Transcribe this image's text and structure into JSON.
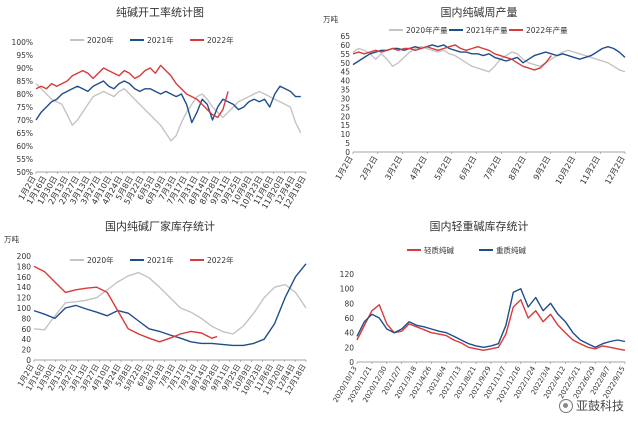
{
  "colors": {
    "y2020": "#c4c4c4",
    "y2021": "#1f4e8c",
    "y2022": "#d93a3a",
    "axis": "#888888",
    "text": "#333333"
  },
  "watermark": {
    "text": "亚鼓科技",
    "icon": "wechat-icon"
  },
  "chart_data": [
    {
      "id": "c1",
      "type": "line",
      "title": "纯碱开工率统计图",
      "unit": "",
      "ylim": [
        50,
        100
      ],
      "yticks": [
        50,
        55,
        60,
        65,
        70,
        75,
        80,
        85,
        90,
        95,
        100
      ],
      "y_percent": true,
      "xticks": [
        "1月2日",
        "1月16日",
        "1月30日",
        "2月13日",
        "2月27日",
        "3月13日",
        "3月27日",
        "4月10日",
        "4月24日",
        "5月8日",
        "5月22日",
        "6月5日",
        "6月19日",
        "7月3日",
        "7月17日",
        "7月31日",
        "8月14日",
        "8月28日",
        "9月11日",
        "9月25日",
        "10月9日",
        "10月23日",
        "11月6日",
        "11月20日",
        "12月4日",
        "12月18日"
      ],
      "xdomain": [
        0,
        52
      ],
      "legend": [
        "2020年",
        "2021年",
        "2022年"
      ],
      "series": [
        {
          "name": "2020年",
          "color": "y2020",
          "x": [
            0,
            1,
            2,
            3,
            4,
            5,
            6,
            7,
            8,
            9,
            10,
            11,
            12,
            13,
            14,
            15,
            16,
            17,
            18,
            19,
            20,
            21,
            22,
            23,
            24,
            25,
            26,
            27,
            28,
            29,
            30,
            31,
            32,
            33,
            34,
            35,
            36,
            37,
            38,
            39,
            40,
            41,
            42,
            43,
            44,
            45,
            46,
            47,
            48,
            49,
            50,
            51
          ],
          "y": [
            84,
            82,
            80,
            78,
            77,
            76,
            72,
            68,
            70,
            73,
            76,
            79,
            80,
            81,
            80,
            79,
            81,
            82,
            80,
            78,
            76,
            74,
            72,
            70,
            68,
            65,
            62,
            64,
            69,
            73,
            76,
            79,
            80,
            78,
            75,
            73,
            71,
            73,
            75,
            77,
            78,
            79,
            80,
            81,
            80,
            79,
            78,
            77,
            76,
            75,
            69,
            65
          ]
        },
        {
          "name": "2021年",
          "color": "y2021",
          "x": [
            0,
            1,
            2,
            3,
            4,
            5,
            6,
            7,
            8,
            9,
            10,
            11,
            12,
            13,
            14,
            15,
            16,
            17,
            18,
            19,
            20,
            21,
            22,
            23,
            24,
            25,
            26,
            27,
            28,
            29,
            30,
            31,
            32,
            33,
            34,
            35,
            36,
            37,
            38,
            39,
            40,
            41,
            42,
            43,
            44,
            45,
            46,
            47,
            48,
            49,
            50,
            51
          ],
          "y": [
            70,
            73,
            75,
            77,
            78,
            80,
            81,
            82,
            83,
            82,
            81,
            83,
            84,
            85,
            83,
            82,
            84,
            85,
            84,
            82,
            81,
            82,
            82,
            81,
            80,
            81,
            80,
            79,
            80,
            76,
            69,
            73,
            78,
            76,
            70,
            75,
            78,
            77,
            76,
            74,
            75,
            77,
            78,
            77,
            78,
            75,
            80,
            83,
            82,
            81,
            79,
            79
          ]
        },
        {
          "name": "2022年",
          "color": "y2022",
          "x": [
            0,
            1,
            2,
            3,
            4,
            5,
            6,
            7,
            8,
            9,
            10,
            11,
            12,
            13,
            14,
            15,
            16,
            17,
            18,
            19,
            20,
            21,
            22,
            23,
            24,
            25,
            26,
            27,
            28,
            29,
            30,
            31,
            32,
            33,
            34,
            35,
            36,
            37
          ],
          "y": [
            82,
            83,
            82,
            84,
            83,
            84,
            85,
            87,
            88,
            89,
            88,
            86,
            88,
            90,
            89,
            88,
            87,
            89,
            88,
            86,
            87,
            89,
            90,
            88,
            91,
            89,
            87,
            84,
            82,
            80,
            79,
            78,
            76,
            74,
            72,
            71,
            74,
            81
          ]
        }
      ]
    },
    {
      "id": "c2",
      "type": "line",
      "title": "国内纯碱周产量",
      "unit": "万吨",
      "ylim": [
        0,
        65
      ],
      "yticks": [
        0,
        5,
        10,
        15,
        20,
        25,
        30,
        35,
        40,
        45,
        50,
        55,
        60,
        65
      ],
      "y_percent": false,
      "xticks": [
        "1月2日",
        "2月2日",
        "3月2日",
        "4月2日",
        "5月2日",
        "6月2日",
        "7月2日",
        "8月2日",
        "9月2日",
        "10月2日",
        "11月2日",
        "12月2日"
      ],
      "xdomain": [
        0,
        12
      ],
      "legend": [
        "2020年产量",
        "2021年产量",
        "2022年产量"
      ],
      "series": [
        {
          "name": "2020年产量",
          "color": "y2020",
          "x": [
            0,
            0.25,
            0.5,
            0.75,
            1,
            1.25,
            1.5,
            1.75,
            2,
            2.25,
            2.5,
            2.75,
            3,
            3.25,
            3.5,
            3.75,
            4,
            4.25,
            4.5,
            4.75,
            5,
            5.25,
            5.5,
            5.75,
            6,
            6.25,
            6.5,
            6.75,
            7,
            7.25,
            7.5,
            7.75,
            8,
            8.25,
            8.5,
            8.75,
            9,
            9.25,
            9.5,
            9.75,
            10,
            10.25,
            10.5,
            10.75,
            11,
            11.25,
            11.5,
            11.75,
            12
          ],
          "y": [
            56,
            58,
            57,
            55,
            52,
            55,
            52,
            48,
            50,
            53,
            56,
            58,
            59,
            58,
            57,
            56,
            57,
            55,
            54,
            52,
            50,
            48,
            47,
            46,
            45,
            48,
            52,
            54,
            56,
            55,
            52,
            50,
            49,
            48,
            50,
            52,
            54,
            56,
            57,
            56,
            55,
            54,
            53,
            52,
            51,
            50,
            48,
            46,
            45
          ]
        },
        {
          "name": "2021年产量",
          "color": "y2021",
          "x": [
            0,
            0.25,
            0.5,
            0.75,
            1,
            1.25,
            1.5,
            1.75,
            2,
            2.25,
            2.5,
            2.75,
            3,
            3.25,
            3.5,
            3.75,
            4,
            4.25,
            4.5,
            4.75,
            5,
            5.25,
            5.5,
            5.75,
            6,
            6.25,
            6.5,
            6.75,
            7,
            7.25,
            7.5,
            7.75,
            8,
            8.25,
            8.5,
            8.75,
            9,
            9.25,
            9.5,
            9.75,
            10,
            10.25,
            10.5,
            10.75,
            11,
            11.25,
            11.5,
            11.75,
            12
          ],
          "y": [
            49,
            51,
            53,
            55,
            56,
            57,
            57,
            58,
            58,
            57,
            58,
            59,
            58,
            59,
            60,
            59,
            60,
            58,
            57,
            56,
            56,
            55,
            55,
            54,
            55,
            53,
            52,
            51,
            52,
            53,
            50,
            52,
            54,
            55,
            56,
            55,
            54,
            55,
            54,
            53,
            52,
            53,
            54,
            56,
            58,
            59,
            58,
            56,
            53
          ]
        },
        {
          "name": "2022年产量",
          "color": "y2022",
          "x": [
            0,
            0.25,
            0.5,
            0.75,
            1,
            1.25,
            1.5,
            1.75,
            2,
            2.25,
            2.5,
            2.75,
            3,
            3.25,
            3.5,
            3.75,
            4,
            4.25,
            4.5,
            4.75,
            5,
            5.25,
            5.5,
            5.75,
            6,
            6.25,
            6.5,
            6.75,
            7,
            7.25,
            7.5,
            7.75,
            8,
            8.25,
            8.5,
            8.75
          ],
          "y": [
            55,
            56,
            55,
            56,
            57,
            56,
            57,
            58,
            57,
            58,
            58,
            57,
            58,
            59,
            58,
            57,
            58,
            59,
            60,
            58,
            57,
            58,
            59,
            58,
            57,
            55,
            54,
            53,
            52,
            50,
            48,
            47,
            46,
            47,
            50,
            54
          ]
        }
      ]
    },
    {
      "id": "c3",
      "type": "line",
      "title": "国内纯碱厂家库存统计",
      "unit": "万吨",
      "ylim": [
        0,
        200
      ],
      "yticks": [
        0,
        20,
        40,
        60,
        80,
        100,
        120,
        140,
        160,
        180,
        200
      ],
      "y_percent": false,
      "xticks": [
        "1月2日",
        "1月16日",
        "1月30日",
        "2月13日",
        "2月27日",
        "3月13日",
        "3月27日",
        "4月10日",
        "4月24日",
        "5月8日",
        "5月22日",
        "6月5日",
        "6月19日",
        "7月3日",
        "7月17日",
        "7月31日",
        "8月14日",
        "8月28日",
        "9月11日",
        "9月25日",
        "10月9日",
        "10月23日",
        "11月6日",
        "11月20日",
        "12月4日",
        "12月18日"
      ],
      "xdomain": [
        0,
        52
      ],
      "legend": [
        "2020年",
        "2021年",
        "2022年"
      ],
      "series": [
        {
          "name": "2020年",
          "color": "y2020",
          "x": [
            0,
            2,
            4,
            6,
            8,
            10,
            12,
            14,
            16,
            18,
            20,
            22,
            24,
            26,
            28,
            30,
            32,
            34,
            36,
            38,
            40,
            42,
            44,
            46,
            48,
            50,
            52
          ],
          "y": [
            60,
            58,
            85,
            110,
            112,
            115,
            120,
            135,
            150,
            162,
            168,
            158,
            140,
            120,
            100,
            92,
            80,
            65,
            55,
            50,
            65,
            90,
            120,
            140,
            145,
            130,
            100
          ]
        },
        {
          "name": "2021年",
          "color": "y2021",
          "x": [
            0,
            2,
            4,
            6,
            8,
            10,
            12,
            14,
            16,
            18,
            20,
            22,
            24,
            26,
            28,
            30,
            32,
            34,
            36,
            38,
            40,
            42,
            44,
            46,
            48,
            50,
            52
          ],
          "y": [
            95,
            88,
            80,
            100,
            105,
            98,
            92,
            85,
            95,
            90,
            75,
            60,
            55,
            48,
            42,
            35,
            32,
            32,
            30,
            28,
            28,
            32,
            40,
            70,
            120,
            160,
            185
          ]
        },
        {
          "name": "2022年",
          "color": "y2022",
          "x": [
            0,
            2,
            4,
            6,
            8,
            10,
            12,
            14,
            16,
            18,
            20,
            22,
            24,
            26,
            28,
            30,
            32,
            34,
            35
          ],
          "y": [
            180,
            170,
            150,
            130,
            135,
            138,
            140,
            130,
            95,
            60,
            50,
            42,
            35,
            42,
            50,
            55,
            52,
            42,
            45
          ]
        }
      ]
    },
    {
      "id": "c4",
      "type": "line",
      "title": "国内轻重碱库存统计",
      "unit": "",
      "ylim": [
        0,
        120
      ],
      "yticks": [
        0,
        20,
        40,
        60,
        80,
        100,
        120
      ],
      "y_percent": false,
      "xticks": [
        "2020/10/13",
        "2020/11/21",
        "2020/12/30",
        "2021/2/7",
        "2021/3/18",
        "2021/4/26",
        "2021/6/4",
        "2021/7/13",
        "2021/8/21",
        "2021/9/29",
        "2021/11/7",
        "2021/12/16",
        "2022/1/24",
        "2022/3/4",
        "2022/4/12",
        "2022/5/21",
        "2022/6/29",
        "2022/8/7",
        "2022/9/15"
      ],
      "xdomain": [
        0,
        18
      ],
      "legend": [
        "轻质纯碱",
        "重质纯碱"
      ],
      "series": [
        {
          "name": "轻质纯碱",
          "color": "y2022",
          "x": [
            0,
            0.5,
            1,
            1.5,
            2,
            2.5,
            3,
            3.5,
            4,
            4.5,
            5,
            5.5,
            6,
            6.5,
            7,
            7.5,
            8,
            8.5,
            9,
            9.5,
            10,
            10.5,
            11,
            11.5,
            12,
            12.5,
            13,
            13.5,
            14,
            14.5,
            15,
            15.5,
            16,
            16.5,
            17,
            17.5,
            18
          ],
          "y": [
            30,
            50,
            70,
            78,
            52,
            40,
            42,
            52,
            48,
            44,
            40,
            38,
            36,
            30,
            26,
            20,
            18,
            16,
            18,
            20,
            38,
            75,
            85,
            60,
            70,
            55,
            65,
            50,
            40,
            30,
            25,
            20,
            18,
            22,
            20,
            18,
            16
          ]
        },
        {
          "name": "重质纯碱",
          "color": "y2021",
          "x": [
            0,
            0.5,
            1,
            1.5,
            2,
            2.5,
            3,
            3.5,
            4,
            4.5,
            5,
            5.5,
            6,
            6.5,
            7,
            7.5,
            8,
            8.5,
            9,
            9.5,
            10,
            10.5,
            11,
            11.5,
            12,
            12.5,
            13,
            13.5,
            14,
            14.5,
            15,
            15.5,
            16,
            16.5,
            17,
            17.5,
            18
          ],
          "y": [
            35,
            55,
            65,
            60,
            45,
            40,
            45,
            55,
            50,
            48,
            45,
            42,
            40,
            35,
            30,
            25,
            22,
            20,
            22,
            25,
            50,
            95,
            100,
            75,
            88,
            70,
            80,
            65,
            55,
            40,
            30,
            25,
            20,
            25,
            28,
            30,
            28
          ]
        }
      ]
    }
  ]
}
